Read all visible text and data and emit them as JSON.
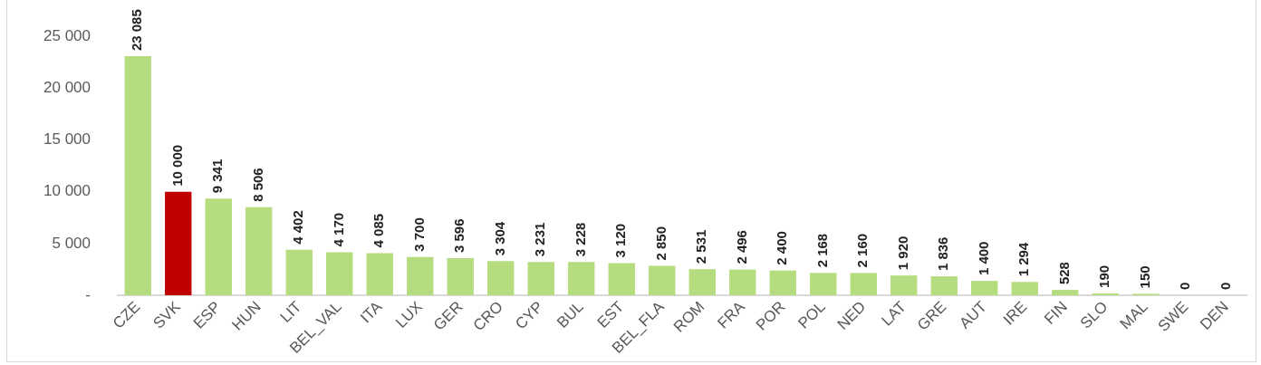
{
  "chart_data": {
    "type": "bar",
    "categories": [
      "CZE",
      "SVK",
      "ESP",
      "HUN",
      "LIT",
      "BEL_VAL",
      "ITA",
      "LUX",
      "GER",
      "CRO",
      "CYP",
      "BUL",
      "EST",
      "BEL_FLA",
      "ROM",
      "FRA",
      "POR",
      "POL",
      "NED",
      "LAT",
      "GRE",
      "AUT",
      "IRE",
      "FIN",
      "SLO",
      "MAL",
      "SWE",
      "DEN"
    ],
    "values": [
      23085,
      10000,
      9341,
      8506,
      4402,
      4170,
      4085,
      3700,
      3596,
      3304,
      3231,
      3228,
      3120,
      2850,
      2531,
      2496,
      2400,
      2168,
      2160,
      1920,
      1836,
      1400,
      1294,
      528,
      190,
      150,
      0,
      0
    ],
    "colors": [
      "#b5dc7e",
      "#c00000",
      "#b5dc7e",
      "#b5dc7e",
      "#b5dc7e",
      "#b5dc7e",
      "#b5dc7e",
      "#b5dc7e",
      "#b5dc7e",
      "#b5dc7e",
      "#b5dc7e",
      "#b5dc7e",
      "#b5dc7e",
      "#b5dc7e",
      "#b5dc7e",
      "#b5dc7e",
      "#b5dc7e",
      "#b5dc7e",
      "#b5dc7e",
      "#b5dc7e",
      "#b5dc7e",
      "#b5dc7e",
      "#b5dc7e",
      "#b5dc7e",
      "#b5dc7e",
      "#b5dc7e",
      "#b5dc7e",
      "#b5dc7e"
    ],
    "value_labels": [
      "23 085",
      "10 000",
      "9 341",
      "8 506",
      "4 402",
      "4 170",
      "4 085",
      "3 700",
      "3 596",
      "3 304",
      "3 231",
      "3 228",
      "3 120",
      "2 850",
      "2 531",
      "2 496",
      "2 400",
      "2 168",
      "2 160",
      "1 920",
      "1 836",
      "1 400",
      "1 294",
      "528",
      "190",
      "150",
      "0",
      "0"
    ],
    "ylim": [
      0,
      25000
    ],
    "yticks": [
      {
        "value": 0,
        "label": "-"
      },
      {
        "value": 5000,
        "label": "5 000"
      },
      {
        "value": 10000,
        "label": "10 000"
      },
      {
        "value": 15000,
        "label": "15 000"
      },
      {
        "value": 20000,
        "label": "20 000"
      },
      {
        "value": 25000,
        "label": "25 000"
      }
    ],
    "grid": false,
    "legend": false
  }
}
